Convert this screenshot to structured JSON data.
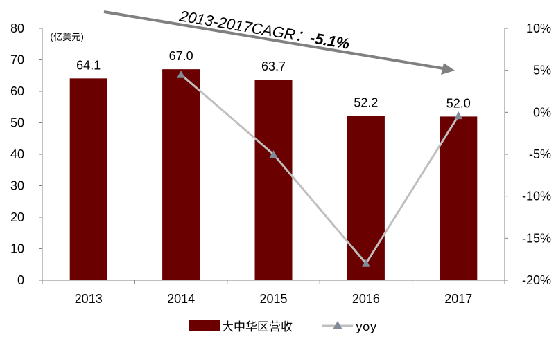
{
  "chart_data": {
    "type": "bar",
    "categories": [
      "2013",
      "2014",
      "2015",
      "2016",
      "2017"
    ],
    "series": [
      {
        "name": "大中华区营收",
        "values": [
          64.1,
          67.0,
          63.7,
          52.2,
          52.0
        ],
        "color": "#6b0000",
        "axis": "left"
      },
      {
        "name": "yoy",
        "type": "line",
        "values": [
          4.5,
          -5.0,
          -18.0,
          -0.4
        ],
        "x": [
          "2014",
          "2015",
          "2016",
          "2017"
        ],
        "color": "#bfbfbf",
        "marker_color": "#808a99",
        "axis": "right"
      }
    ],
    "data_labels": [
      "64.1",
      "67.0",
      "63.7",
      "52.2",
      "52.0"
    ],
    "ylim": [
      0,
      80
    ],
    "yticks": [
      "0",
      "10",
      "20",
      "30",
      "40",
      "50",
      "60",
      "70",
      "80"
    ],
    "y2lim": [
      -20,
      10
    ],
    "y2ticks": [
      "10%",
      "5%",
      "0%",
      "-5%",
      "-10%",
      "-15%",
      "-20%"
    ],
    "unit_label": "(亿美元)",
    "annotation": {
      "text": "2013-2017CAGR：",
      "value": "-5.1%",
      "arrow_color": "#808080"
    },
    "legend": {
      "position": "bottom"
    },
    "grid": false
  }
}
